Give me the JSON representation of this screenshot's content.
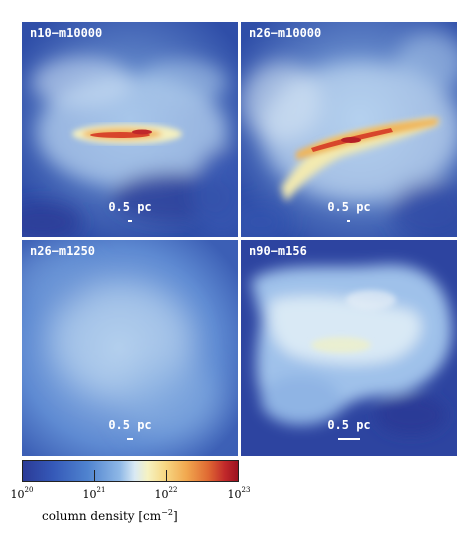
{
  "panels": [
    {
      "label": "n10−m10000",
      "scale_label": "0.5 pc"
    },
    {
      "label": "n26−m10000",
      "scale_label": "0.5 pc"
    },
    {
      "label": "n26−m1250",
      "scale_label": "0.5 pc"
    },
    {
      "label": "n90−m156",
      "scale_label": "0.5 pc"
    }
  ],
  "colorbar": {
    "title_text": "column density [cm",
    "title_exp": "−2",
    "title_close": "]",
    "tick_base": "10",
    "tick_exps": [
      "20",
      "21",
      "22",
      "23"
    ],
    "colors": [
      "#2b3b97",
      "#4f83cf",
      "#d9e9f4",
      "#f7d884",
      "#e06a33",
      "#9b1220"
    ]
  }
}
